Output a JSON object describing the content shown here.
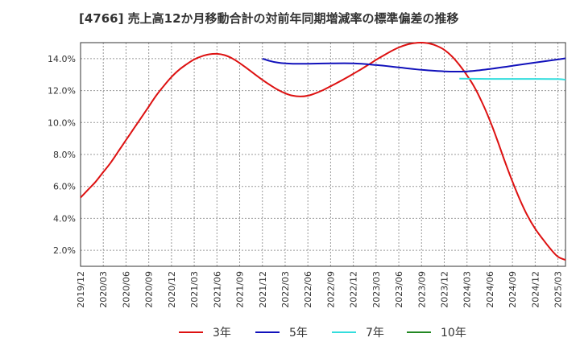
{
  "chart_data": {
    "type": "line",
    "title": "[4766]  売上高12か月移動合計の対前年同期増減率の標準偏差の推移",
    "xlabel": "",
    "ylabel": "",
    "y_unit": "%",
    "ylim": [
      1.0,
      15.0
    ],
    "y_ticks": [
      2.0,
      4.0,
      6.0,
      8.0,
      10.0,
      12.0,
      14.0
    ],
    "y_tick_labels": [
      "2.0%",
      "4.0%",
      "6.0%",
      "8.0%",
      "10.0%",
      "12.0%",
      "14.0%"
    ],
    "x_tick_labels": [
      "2019/12",
      "2020/03",
      "2020/06",
      "2020/09",
      "2020/12",
      "2021/03",
      "2021/06",
      "2021/09",
      "2021/12",
      "2022/03",
      "2022/06",
      "2022/09",
      "2022/12",
      "2023/03",
      "2023/06",
      "2023/09",
      "2023/12",
      "2024/03",
      "2024/06",
      "2024/09",
      "2024/12",
      "2025/03"
    ],
    "grid": true,
    "legend_position": "bottom",
    "series": [
      {
        "name": "3年",
        "color": "#dd1111",
        "points": [
          [
            "2019/12",
            5.3
          ],
          [
            "2020/01",
            5.8
          ],
          [
            "2020/02",
            6.3
          ],
          [
            "2020/03",
            6.9
          ],
          [
            "2020/04",
            7.5
          ],
          [
            "2020/05",
            8.2
          ],
          [
            "2020/06",
            8.9
          ],
          [
            "2020/07",
            9.6
          ],
          [
            "2020/08",
            10.3
          ],
          [
            "2020/09",
            11.0
          ],
          [
            "2020/10",
            11.7
          ],
          [
            "2020/11",
            12.3
          ],
          [
            "2020/12",
            12.85
          ],
          [
            "2021/01",
            13.3
          ],
          [
            "2021/02",
            13.65
          ],
          [
            "2021/03",
            13.95
          ],
          [
            "2021/04",
            14.15
          ],
          [
            "2021/05",
            14.27
          ],
          [
            "2021/06",
            14.3
          ],
          [
            "2021/07",
            14.22
          ],
          [
            "2021/08",
            14.02
          ],
          [
            "2021/09",
            13.72
          ],
          [
            "2021/10",
            13.38
          ],
          [
            "2021/11",
            13.02
          ],
          [
            "2021/12",
            12.67
          ],
          [
            "2022/01",
            12.35
          ],
          [
            "2022/02",
            12.06
          ],
          [
            "2022/03",
            11.83
          ],
          [
            "2022/04",
            11.68
          ],
          [
            "2022/05",
            11.63
          ],
          [
            "2022/06",
            11.68
          ],
          [
            "2022/07",
            11.83
          ],
          [
            "2022/08",
            12.03
          ],
          [
            "2022/09",
            12.27
          ],
          [
            "2022/10",
            12.52
          ],
          [
            "2022/11",
            12.78
          ],
          [
            "2022/12",
            13.05
          ],
          [
            "2023/01",
            13.33
          ],
          [
            "2023/02",
            13.62
          ],
          [
            "2023/03",
            13.92
          ],
          [
            "2023/04",
            14.2
          ],
          [
            "2023/05",
            14.47
          ],
          [
            "2023/06",
            14.7
          ],
          [
            "2023/07",
            14.87
          ],
          [
            "2023/08",
            14.97
          ],
          [
            "2023/09",
            15.0
          ],
          [
            "2023/10",
            14.95
          ],
          [
            "2023/11",
            14.8
          ],
          [
            "2023/12",
            14.55
          ],
          [
            "2024/01",
            14.15
          ],
          [
            "2024/02",
            13.6
          ],
          [
            "2024/03",
            12.95
          ],
          [
            "2024/04",
            12.2
          ],
          [
            "2024/05",
            11.25
          ],
          [
            "2024/06",
            10.15
          ],
          [
            "2024/07",
            8.9
          ],
          [
            "2024/08",
            7.55
          ],
          [
            "2024/09",
            6.3
          ],
          [
            "2024/10",
            5.15
          ],
          [
            "2024/11",
            4.15
          ],
          [
            "2024/12",
            3.35
          ],
          [
            "2025/01",
            2.7
          ],
          [
            "2025/02",
            2.1
          ],
          [
            "2025/03",
            1.6
          ],
          [
            "2025/04",
            1.4
          ]
        ]
      },
      {
        "name": "5年",
        "color": "#1111bb",
        "points": [
          [
            "2021/12",
            14.0
          ],
          [
            "2022/01",
            13.85
          ],
          [
            "2022/02",
            13.75
          ],
          [
            "2022/03",
            13.7
          ],
          [
            "2022/04",
            13.68
          ],
          [
            "2022/06",
            13.68
          ],
          [
            "2022/09",
            13.7
          ],
          [
            "2022/12",
            13.7
          ],
          [
            "2023/03",
            13.6
          ],
          [
            "2023/06",
            13.45
          ],
          [
            "2023/09",
            13.3
          ],
          [
            "2023/12",
            13.2
          ],
          [
            "2024/03",
            13.2
          ],
          [
            "2024/06",
            13.35
          ],
          [
            "2024/09",
            13.55
          ],
          [
            "2024/12",
            13.75
          ],
          [
            "2025/03",
            13.95
          ],
          [
            "2025/04",
            14.02
          ]
        ]
      },
      {
        "name": "7年",
        "color": "#33dddd",
        "points": [
          [
            "2024/02",
            12.75
          ],
          [
            "2024/06",
            12.73
          ],
          [
            "2024/12",
            12.73
          ],
          [
            "2025/03",
            12.72
          ],
          [
            "2025/04",
            12.68
          ]
        ]
      },
      {
        "name": "10年",
        "color": "#228822",
        "points": []
      }
    ]
  }
}
